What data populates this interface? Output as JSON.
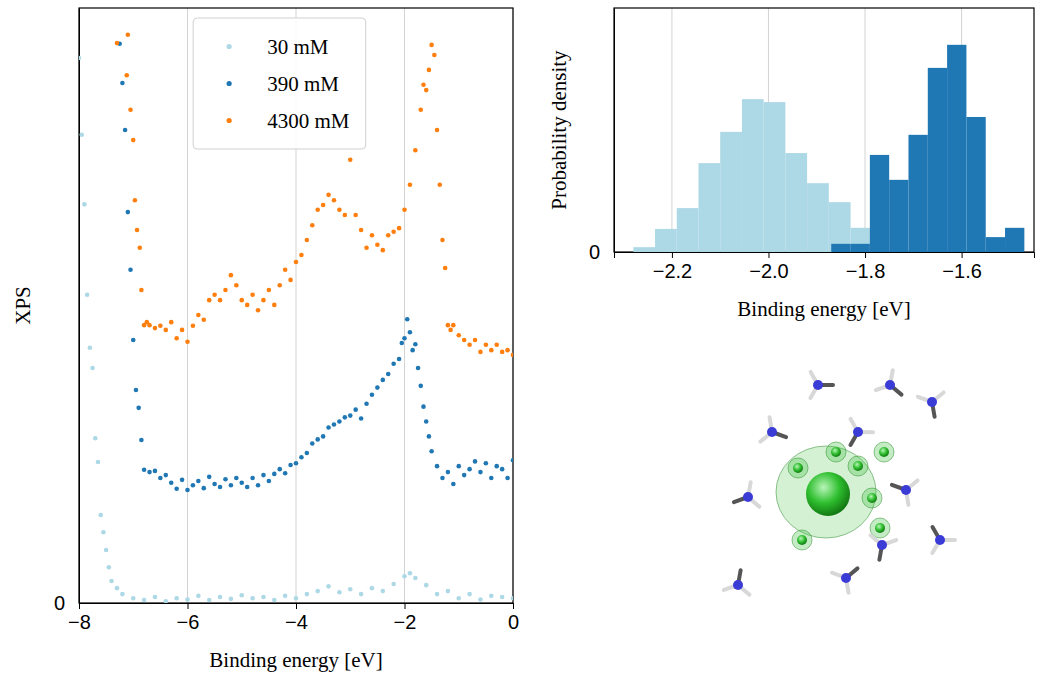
{
  "chart_data": [
    {
      "type": "scatter",
      "x_label": "Binding energy [eV]",
      "y_label": "XPS",
      "xlim": [
        -8,
        0
      ],
      "xticks": [
        {
          "value": -8,
          "label": "−8"
        },
        {
          "value": -6,
          "label": "−6"
        },
        {
          "value": -4,
          "label": "−4"
        },
        {
          "value": -2,
          "label": "−2"
        },
        0
      ],
      "ylim": [
        0,
        100
      ],
      "yticks": [
        0
      ],
      "grid": "x",
      "legend": "upper center",
      "series": [
        {
          "name": "30 mM",
          "color": "#add8e6",
          "marker": "circle",
          "x": [
            -8.0,
            -7.95,
            -7.9,
            -7.85,
            -7.8,
            -7.75,
            -7.7,
            -7.65,
            -7.6,
            -7.55,
            -7.5,
            -7.45,
            -7.4,
            -7.3,
            -7.2,
            -7.0,
            -6.8,
            -6.6,
            -6.4,
            -6.2,
            -6.0,
            -5.8,
            -5.6,
            -5.4,
            -5.2,
            -5.0,
            -4.8,
            -4.6,
            -4.4,
            -4.2,
            -4.0,
            -3.8,
            -3.6,
            -3.4,
            -3.2,
            -3.0,
            -2.8,
            -2.6,
            -2.4,
            -2.2,
            -2.0,
            -1.9,
            -1.8,
            -1.6,
            -1.4,
            -1.2,
            -1.0,
            -0.8,
            -0.6,
            -0.4,
            -0.2,
            0.0
          ],
          "values": [
            91.6,
            78.7,
            67.0,
            51.8,
            42.9,
            39.5,
            27.7,
            23.7,
            14.8,
            11.9,
            8.9,
            6.0,
            3.7,
            2.5,
            1.5,
            0.8,
            0.5,
            1.0,
            0.3,
            0.8,
            0.6,
            1.2,
            0.5,
            1.0,
            0.7,
            1.3,
            0.8,
            1.0,
            0.5,
            1.2,
            0.8,
            1.5,
            2.0,
            2.8,
            1.8,
            2.3,
            1.5,
            2.5,
            2.0,
            3.2,
            4.5,
            5.0,
            4.2,
            3.0,
            1.5,
            2.0,
            0.8,
            1.5,
            0.6,
            1.2,
            1.0,
            0.8
          ]
        },
        {
          "name": "390 mM",
          "color": "#1f77b4",
          "marker": "circle",
          "x": [
            -7.25,
            -7.2,
            -7.15,
            -7.1,
            -7.05,
            -7.0,
            -6.95,
            -6.9,
            -6.85,
            -6.8,
            -6.7,
            -6.6,
            -6.5,
            -6.4,
            -6.3,
            -6.2,
            -6.1,
            -6.0,
            -5.9,
            -5.8,
            -5.7,
            -5.6,
            -5.5,
            -5.4,
            -5.3,
            -5.2,
            -5.1,
            -5.0,
            -4.9,
            -4.8,
            -4.7,
            -4.6,
            -4.5,
            -4.4,
            -4.3,
            -4.2,
            -4.1,
            -4.0,
            -3.9,
            -3.8,
            -3.7,
            -3.6,
            -3.5,
            -3.4,
            -3.3,
            -3.2,
            -3.1,
            -3.0,
            -2.9,
            -2.8,
            -2.7,
            -2.6,
            -2.5,
            -2.4,
            -2.3,
            -2.2,
            -2.1,
            -2.05,
            -2.0,
            -1.95,
            -1.9,
            -1.85,
            -1.8,
            -1.75,
            -1.7,
            -1.65,
            -1.6,
            -1.55,
            -1.5,
            -1.4,
            -1.3,
            -1.2,
            -1.1,
            -1.0,
            -0.9,
            -0.8,
            -0.7,
            -0.6,
            -0.5,
            -0.4,
            -0.3,
            -0.2,
            -0.1,
            0.0
          ],
          "values": [
            94.0,
            87.4,
            79.5,
            65.7,
            56.0,
            44.2,
            35.8,
            32.8,
            27.4,
            22.4,
            22.0,
            22.2,
            21.0,
            21.5,
            20.2,
            19.2,
            20.7,
            19.0,
            19.8,
            20.5,
            19.3,
            21.2,
            20.0,
            19.5,
            20.8,
            19.8,
            21.0,
            20.2,
            19.5,
            21.0,
            19.8,
            21.5,
            20.5,
            21.7,
            22.5,
            21.8,
            23.2,
            23.5,
            24.5,
            25.2,
            26.8,
            27.5,
            28.0,
            29.5,
            30.0,
            30.5,
            31.2,
            31.5,
            32.5,
            31.0,
            33.5,
            35.0,
            36.2,
            37.5,
            38.5,
            40.2,
            41.0,
            43.7,
            44.5,
            47.7,
            45.5,
            42.5,
            43.5,
            39.5,
            36.5,
            33.0,
            30.5,
            28.0,
            25.5,
            23.0,
            21.0,
            22.0,
            20.0,
            23.0,
            21.5,
            22.5,
            23.8,
            22.0,
            23.5,
            21.0,
            23.0,
            22.5,
            21.0,
            24.0
          ]
        },
        {
          "name": "4300 mM",
          "color": "#ff7f0e",
          "marker": "circle",
          "x": [
            -7.3,
            -7.1,
            -7.12,
            -7.05,
            -7.0,
            -6.97,
            -6.93,
            -6.88,
            -6.85,
            -6.8,
            -6.75,
            -6.7,
            -6.6,
            -6.5,
            -6.4,
            -6.3,
            -6.2,
            -6.1,
            -6.0,
            -5.9,
            -5.8,
            -5.7,
            -5.6,
            -5.5,
            -5.4,
            -5.3,
            -5.2,
            -5.1,
            -5.0,
            -4.9,
            -4.8,
            -4.7,
            -4.6,
            -4.5,
            -4.4,
            -4.3,
            -4.2,
            -4.1,
            -4.0,
            -3.9,
            -3.8,
            -3.7,
            -3.6,
            -3.5,
            -3.4,
            -3.3,
            -3.2,
            -3.1,
            -3.0,
            -2.9,
            -2.8,
            -2.7,
            -2.6,
            -2.5,
            -2.4,
            -2.3,
            -2.2,
            -2.1,
            -2.0,
            -1.9,
            -1.8,
            -1.7,
            -1.65,
            -1.6,
            -1.55,
            -1.5,
            -1.45,
            -1.4,
            -1.35,
            -1.3,
            -1.25,
            -1.2,
            -1.15,
            -1.1,
            -1.0,
            -0.9,
            -0.8,
            -0.7,
            -0.6,
            -0.5,
            -0.4,
            -0.3,
            -0.2,
            -0.1,
            0.0
          ],
          "values": [
            94.1,
            95.5,
            88.7,
            82.9,
            77.8,
            67.7,
            62.7,
            59.7,
            52.6,
            46.7,
            47.2,
            46.7,
            46.2,
            46.6,
            45.9,
            47.2,
            44.5,
            45.9,
            43.9,
            46.6,
            48.4,
            47.6,
            50.9,
            51.8,
            50.9,
            52.6,
            55.1,
            53.4,
            50.9,
            50.1,
            51.8,
            49.2,
            50.9,
            52.6,
            50.1,
            53.4,
            56.0,
            54.3,
            57.3,
            58.5,
            61.0,
            63.5,
            66.1,
            66.9,
            68.6,
            67.7,
            66.1,
            65.2,
            74.5,
            65.2,
            62.7,
            59.7,
            61.8,
            60.2,
            59.3,
            61.8,
            62.4,
            63.0,
            66.1,
            70.3,
            76.1,
            82.9,
            87.1,
            86.2,
            89.6,
            93.8,
            92.1,
            79.5,
            70.3,
            61.0,
            56.3,
            46.7,
            45.9,
            46.7,
            45.0,
            44.2,
            43.4,
            44.2,
            42.2,
            43.4,
            42.5,
            43.4,
            42.2,
            42.5,
            41.7
          ]
        }
      ]
    },
    {
      "type": "histogram",
      "x_label": "Binding energy [eV]",
      "y_label": "Probability density",
      "xlim": [
        -2.32,
        -1.45
      ],
      "xticks": [
        {
          "value": -2.2,
          "label": "−2.2"
        },
        {
          "value": -2.0,
          "label": "−2.0"
        },
        {
          "value": -1.8,
          "label": "−1.8"
        },
        {
          "value": -1.6,
          "label": "−1.6"
        }
      ],
      "ylim": [
        0,
        6.56
      ],
      "yticks": [
        0
      ],
      "grid": "x",
      "series": [
        {
          "color": "#add8e6",
          "bins": [
            -2.28,
            -2.235,
            -2.19,
            -2.145,
            -2.1,
            -2.055,
            -2.01,
            -1.965,
            -1.92,
            -1.875,
            -1.83,
            -1.785
          ],
          "values": [
            0.13,
            0.62,
            1.18,
            2.39,
            3.23,
            4.11,
            4.03,
            2.66,
            1.85,
            1.34,
            0.65
          ]
        },
        {
          "color": "#1f77b4",
          "bins": [
            -1.87,
            -1.83,
            -1.79,
            -1.75,
            -1.71,
            -1.67,
            -1.63,
            -1.59,
            -1.55,
            -1.51,
            -1.47
          ],
          "values": [
            0.22,
            0.22,
            2.61,
            1.94,
            3.15,
            4.95,
            5.57,
            3.63,
            0.4,
            0.65
          ]
        }
      ]
    }
  ]
}
